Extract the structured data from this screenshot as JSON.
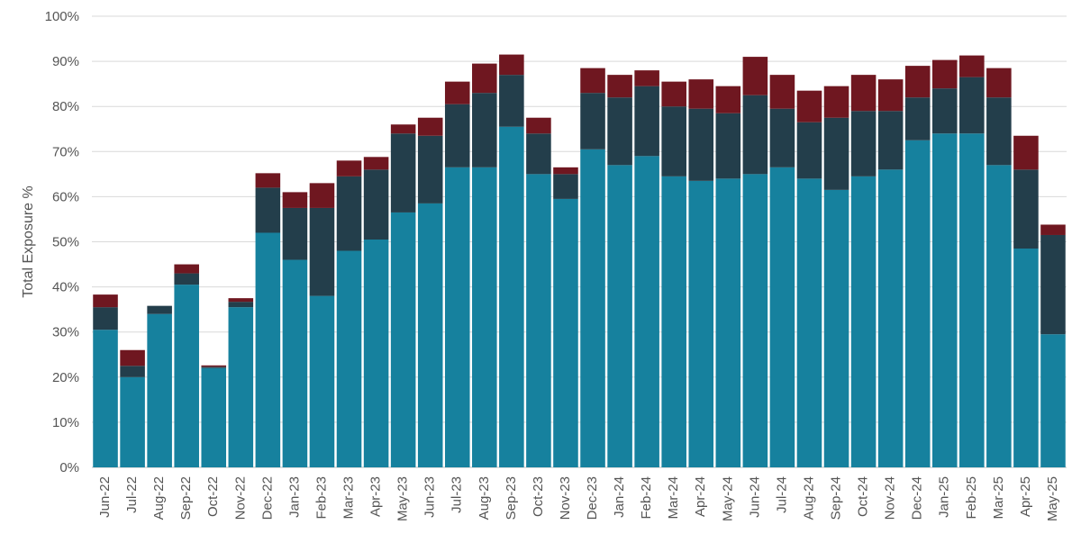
{
  "chart_data": {
    "type": "bar",
    "stacked": true,
    "ylabel": "Total Exposure %",
    "ylim": [
      0,
      100
    ],
    "yticks": [
      "0%",
      "10%",
      "20%",
      "30%",
      "40%",
      "50%",
      "60%",
      "70%",
      "80%",
      "90%",
      "100%"
    ],
    "grid": true,
    "legend": "none",
    "categories": [
      "Jun-22",
      "Jul-22",
      "Aug-22",
      "Sep-22",
      "Oct-22",
      "Nov-22",
      "Dec-22",
      "Jan-23",
      "Feb-23",
      "Mar-23",
      "Apr-23",
      "May-23",
      "Jun-23",
      "Jul-23",
      "Aug-23",
      "Sep-23",
      "Oct-23",
      "Nov-23",
      "Dec-23",
      "Jan-24",
      "Feb-24",
      "Mar-24",
      "Apr-24",
      "May-24",
      "Jun-24",
      "Jul-24",
      "Aug-24",
      "Sep-24",
      "Oct-24",
      "Nov-24",
      "Dec-24",
      "Jan-25",
      "Feb-25",
      "Mar-25",
      "Apr-25",
      "May-25"
    ],
    "series": [
      {
        "color": "#16819e",
        "values": [
          30.5,
          20,
          34,
          40.5,
          22,
          35.5,
          52,
          46,
          38,
          48,
          50.5,
          56.5,
          58.5,
          66.5,
          66.5,
          75.5,
          65,
          59.5,
          70.5,
          67,
          69,
          64.5,
          63.5,
          64,
          65,
          66.5,
          64,
          61.5,
          64.5,
          66,
          72.5,
          74,
          74,
          67,
          48.5,
          29.5
        ]
      },
      {
        "color": "#233e4b",
        "values": [
          5,
          2.5,
          1.8,
          2.5,
          0.3,
          1.2,
          10,
          11.5,
          19.5,
          16.5,
          15.5,
          17.5,
          15,
          14,
          16.5,
          11.5,
          9,
          5.5,
          12.5,
          15,
          15.5,
          15.5,
          16,
          14.5,
          17.5,
          13,
          12.5,
          16,
          14.5,
          13,
          9.5,
          10,
          12.5,
          15,
          17.5,
          22
        ]
      },
      {
        "color": "#6f1720",
        "values": [
          2.8,
          3.5,
          0,
          2,
          0.3,
          0.8,
          3.2,
          3.5,
          5.5,
          3.5,
          2.8,
          2,
          4,
          5,
          6.5,
          4.5,
          3.5,
          1.5,
          5.5,
          5,
          3.5,
          5.5,
          6.5,
          6,
          8.5,
          7.5,
          7,
          7,
          8,
          7,
          7,
          6.3,
          4.8,
          6.5,
          7.5,
          2.3
        ]
      }
    ]
  }
}
